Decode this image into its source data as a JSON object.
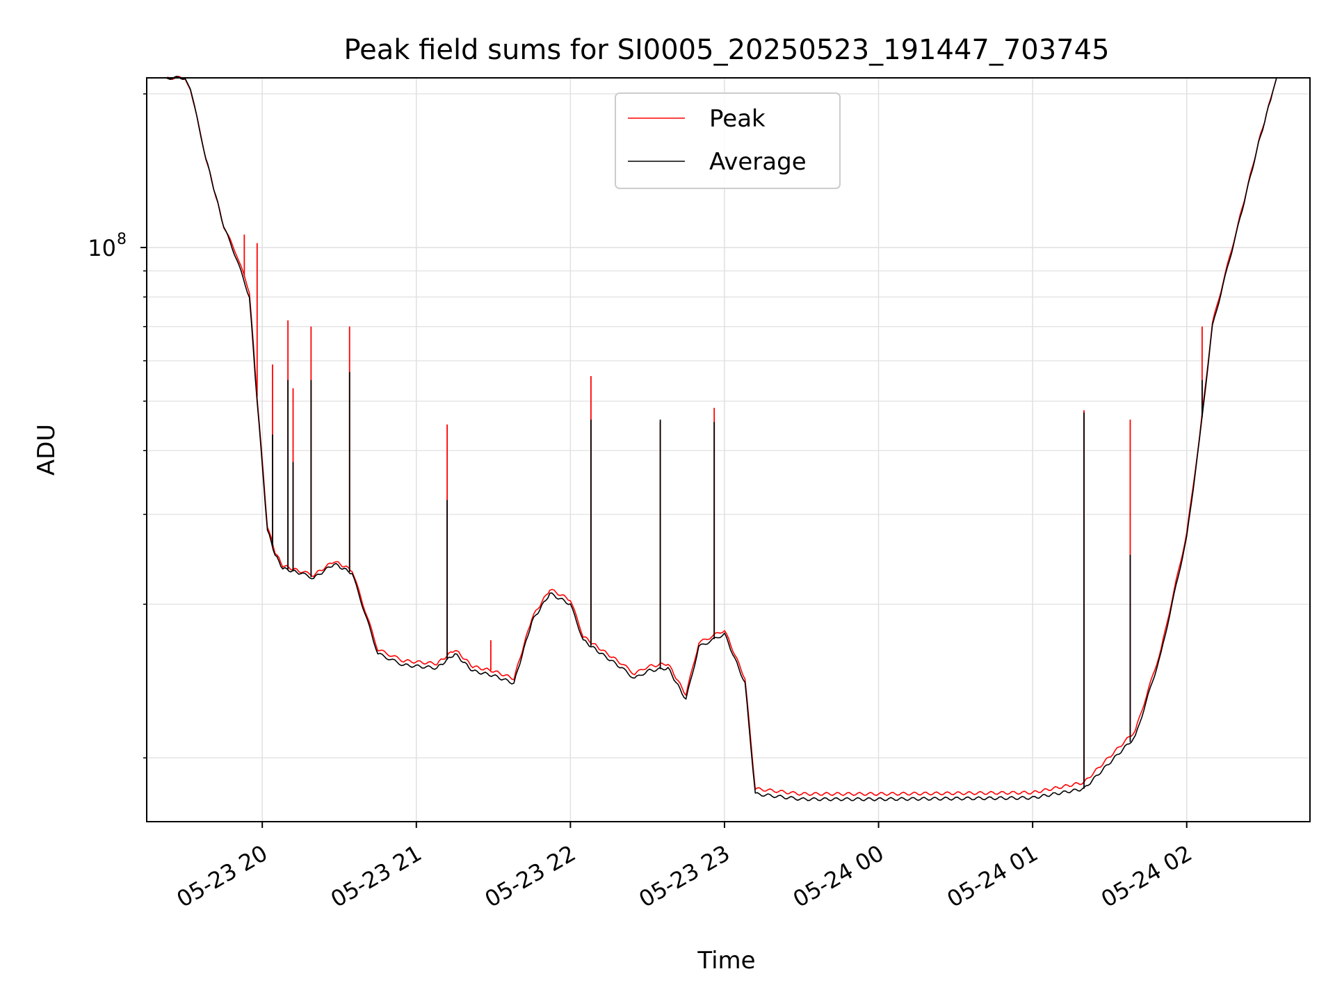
{
  "chart_data": {
    "type": "line",
    "title": "Peak field sums for SI0005_20250523_191447_703745",
    "xlabel": "Time",
    "ylabel": "ADU",
    "y_scale": "log",
    "ylim": [
      7500000,
      215000000
    ],
    "xlim": [
      "2025-05-23 19:15",
      "2025-05-24 02:48"
    ],
    "grid": true,
    "legend": {
      "placement": "upper center",
      "entries": [
        "Peak",
        "Average"
      ]
    },
    "x_ticks": [
      {
        "t": "2025-05-23 20:00",
        "label": "05-23 20"
      },
      {
        "t": "2025-05-23 21:00",
        "label": "05-23 21"
      },
      {
        "t": "2025-05-23 22:00",
        "label": "05-23 22"
      },
      {
        "t": "2025-05-23 23:00",
        "label": "05-23 23"
      },
      {
        "t": "2025-05-24 00:00",
        "label": "05-24 00"
      },
      {
        "t": "2025-05-24 01:00",
        "label": "05-24 01"
      },
      {
        "t": "2025-05-24 02:00",
        "label": "05-24 02"
      }
    ],
    "y_ticks": [
      {
        "value": 100000000,
        "label_base": "10",
        "label_exp": "8"
      }
    ],
    "y_minor_ticks": [
      10000000,
      20000000,
      30000000,
      40000000,
      50000000,
      60000000,
      70000000,
      80000000,
      90000000,
      200000000
    ],
    "series": [
      {
        "name": "Average",
        "color": "#000000",
        "points": [
          [
            "2025-05-23 19:15",
            215000000
          ],
          [
            "2025-05-23 19:30",
            215000000
          ],
          [
            "2025-05-23 19:32",
            205000000
          ],
          [
            "2025-05-23 19:38",
            150000000
          ],
          [
            "2025-05-23 19:45",
            110000000
          ],
          [
            "2025-05-23 19:50",
            95000000
          ],
          [
            "2025-05-23 19:55",
            80000000
          ],
          [
            "2025-05-23 19:58",
            50000000
          ],
          [
            "2025-05-23 20:02",
            28000000
          ],
          [
            "2025-05-23 20:05",
            25000000
          ],
          [
            "2025-05-23 20:08",
            23500000
          ],
          [
            "2025-05-23 20:15",
            23000000
          ],
          [
            "2025-05-23 20:20",
            22500000
          ],
          [
            "2025-05-23 20:28",
            24000000
          ],
          [
            "2025-05-23 20:35",
            23000000
          ],
          [
            "2025-05-23 20:45",
            16000000
          ],
          [
            "2025-05-23 20:55",
            15200000
          ],
          [
            "2025-05-23 21:08",
            15000000
          ],
          [
            "2025-05-23 21:15",
            16000000
          ],
          [
            "2025-05-23 21:22",
            14800000
          ],
          [
            "2025-05-23 21:30",
            14500000
          ],
          [
            "2025-05-23 21:38",
            14000000
          ],
          [
            "2025-05-23 21:45",
            18500000
          ],
          [
            "2025-05-23 21:52",
            21000000
          ],
          [
            "2025-05-23 22:00",
            20000000
          ],
          [
            "2025-05-23 22:05",
            17000000
          ],
          [
            "2025-05-23 22:12",
            16000000
          ],
          [
            "2025-05-23 22:20",
            15000000
          ],
          [
            "2025-05-23 22:25",
            14300000
          ],
          [
            "2025-05-23 22:30",
            14800000
          ],
          [
            "2025-05-23 22:38",
            15000000
          ],
          [
            "2025-05-23 22:45",
            13000000
          ],
          [
            "2025-05-23 22:50",
            16500000
          ],
          [
            "2025-05-23 23:00",
            17500000
          ],
          [
            "2025-05-23 23:08",
            14000000
          ],
          [
            "2025-05-23 23:12",
            8500000
          ],
          [
            "2025-05-23 23:30",
            8300000
          ],
          [
            "2025-05-24 00:00",
            8300000
          ],
          [
            "2025-05-24 01:00",
            8350000
          ],
          [
            "2025-05-24 01:20",
            8700000
          ],
          [
            "2025-05-24 01:40",
            11000000
          ],
          [
            "2025-05-24 01:50",
            16000000
          ],
          [
            "2025-05-24 02:00",
            27000000
          ],
          [
            "2025-05-24 02:05",
            42000000
          ],
          [
            "2025-05-24 02:10",
            70000000
          ],
          [
            "2025-05-24 02:20",
            110000000
          ],
          [
            "2025-05-24 02:28",
            160000000
          ],
          [
            "2025-05-24 02:35",
            215000000
          ],
          [
            "2025-05-24 02:48",
            215000000
          ]
        ],
        "spikes": [
          [
            "2025-05-23 20:04",
            43000000
          ],
          [
            "2025-05-23 20:10",
            55000000
          ],
          [
            "2025-05-23 20:12",
            38000000
          ],
          [
            "2025-05-23 20:19",
            55000000
          ],
          [
            "2025-05-23 20:34",
            57000000
          ],
          [
            "2025-05-23 21:12",
            32000000
          ],
          [
            "2025-05-23 22:08",
            46000000
          ],
          [
            "2025-05-23 22:35",
            46000000
          ],
          [
            "2025-05-23 22:56",
            45500000
          ],
          [
            "2025-05-24 01:20",
            47500000
          ],
          [
            "2025-05-24 01:38",
            25000000
          ],
          [
            "2025-05-24 02:06",
            55000000
          ]
        ]
      },
      {
        "name": "Peak",
        "color": "#ff0000",
        "points": [
          [
            "2025-05-23 19:15",
            215000000
          ],
          [
            "2025-05-23 19:30",
            215000000
          ],
          [
            "2025-05-23 19:32",
            205000000
          ],
          [
            "2025-05-23 19:38",
            150000000
          ],
          [
            "2025-05-23 19:45",
            110000000
          ],
          [
            "2025-05-23 19:50",
            97000000
          ],
          [
            "2025-05-23 19:55",
            82000000
          ],
          [
            "2025-05-23 19:58",
            51000000
          ],
          [
            "2025-05-23 20:02",
            28500000
          ],
          [
            "2025-05-23 20:05",
            25300000
          ],
          [
            "2025-05-23 20:08",
            23800000
          ],
          [
            "2025-05-23 20:15",
            23200000
          ],
          [
            "2025-05-23 20:20",
            22800000
          ],
          [
            "2025-05-23 20:28",
            24300000
          ],
          [
            "2025-05-23 20:35",
            23300000
          ],
          [
            "2025-05-23 20:45",
            16300000
          ],
          [
            "2025-05-23 20:55",
            15500000
          ],
          [
            "2025-05-23 21:08",
            15300000
          ],
          [
            "2025-05-23 21:15",
            16300000
          ],
          [
            "2025-05-23 21:22",
            15100000
          ],
          [
            "2025-05-23 21:30",
            14800000
          ],
          [
            "2025-05-23 21:38",
            14300000
          ],
          [
            "2025-05-23 21:45",
            18800000
          ],
          [
            "2025-05-23 21:52",
            21400000
          ],
          [
            "2025-05-23 22:00",
            20400000
          ],
          [
            "2025-05-23 22:05",
            17300000
          ],
          [
            "2025-05-23 22:12",
            16300000
          ],
          [
            "2025-05-23 22:20",
            15300000
          ],
          [
            "2025-05-23 22:25",
            14600000
          ],
          [
            "2025-05-23 22:30",
            15100000
          ],
          [
            "2025-05-23 22:38",
            15300000
          ],
          [
            "2025-05-23 22:45",
            13300000
          ],
          [
            "2025-05-23 22:50",
            16800000
          ],
          [
            "2025-05-23 23:00",
            17800000
          ],
          [
            "2025-05-23 23:08",
            14300000
          ],
          [
            "2025-05-23 23:12",
            8700000
          ],
          [
            "2025-05-23 23:30",
            8500000
          ],
          [
            "2025-05-24 00:00",
            8500000
          ],
          [
            "2025-05-24 01:00",
            8550000
          ],
          [
            "2025-05-24 01:20",
            8950000
          ],
          [
            "2025-05-24 01:40",
            11300000
          ],
          [
            "2025-05-24 01:50",
            16300000
          ],
          [
            "2025-05-24 02:00",
            27500000
          ],
          [
            "2025-05-24 02:05",
            42500000
          ],
          [
            "2025-05-24 02:10",
            71000000
          ],
          [
            "2025-05-24 02:20",
            111000000
          ],
          [
            "2025-05-24 02:28",
            161000000
          ],
          [
            "2025-05-24 02:35",
            215000000
          ],
          [
            "2025-05-24 02:48",
            215000000
          ]
        ],
        "spikes": [
          [
            "2025-05-23 19:53",
            106000000
          ],
          [
            "2025-05-23 19:58",
            102000000
          ],
          [
            "2025-05-23 20:04",
            59000000
          ],
          [
            "2025-05-23 20:10",
            72000000
          ],
          [
            "2025-05-23 20:12",
            53000000
          ],
          [
            "2025-05-23 20:19",
            70000000
          ],
          [
            "2025-05-23 20:34",
            70000000
          ],
          [
            "2025-05-23 21:12",
            45000000
          ],
          [
            "2025-05-23 21:29",
            17000000
          ],
          [
            "2025-05-23 22:08",
            56000000
          ],
          [
            "2025-05-23 22:35",
            45500000
          ],
          [
            "2025-05-23 22:56",
            48500000
          ],
          [
            "2025-05-24 01:20",
            48000000
          ],
          [
            "2025-05-24 01:38",
            46000000
          ],
          [
            "2025-05-24 02:06",
            70000000
          ]
        ]
      }
    ]
  }
}
